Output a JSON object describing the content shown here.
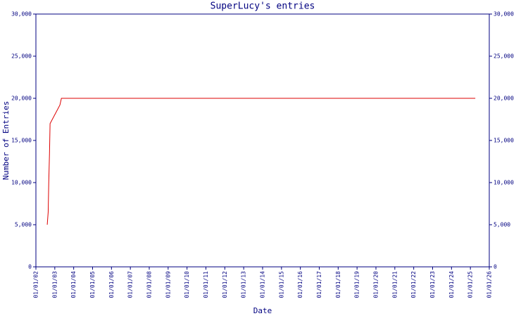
{
  "chart_data": {
    "type": "line",
    "title": "SuperLucy's entries",
    "x_label": "Date",
    "y_label": "Number of Entries",
    "series": [
      {
        "name": "SuperLucy",
        "color": "#dd0000",
        "x": [
          2002.6,
          2002.65,
          2002.68,
          2002.72,
          2002.75,
          2003.27,
          2003.35,
          2025.26
        ],
        "values": [
          5000,
          6500,
          10000,
          13500,
          17000,
          19200,
          20000,
          20000
        ]
      }
    ],
    "xlim": [
      2002,
      2026
    ],
    "xticks": [
      {
        "value": 2002,
        "label": "01/01/02"
      },
      {
        "value": 2003,
        "label": "01/01/03"
      },
      {
        "value": 2004,
        "label": "01/01/04"
      },
      {
        "value": 2005,
        "label": "01/01/05"
      },
      {
        "value": 2006,
        "label": "01/01/06"
      },
      {
        "value": 2007,
        "label": "01/01/07"
      },
      {
        "value": 2008,
        "label": "01/01/08"
      },
      {
        "value": 2009,
        "label": "01/01/09"
      },
      {
        "value": 2010,
        "label": "01/01/10"
      },
      {
        "value": 2011,
        "label": "01/01/11"
      },
      {
        "value": 2012,
        "label": "01/01/12"
      },
      {
        "value": 2013,
        "label": "01/01/13"
      },
      {
        "value": 2014,
        "label": "01/01/14"
      },
      {
        "value": 2015,
        "label": "01/01/15"
      },
      {
        "value": 2016,
        "label": "01/01/16"
      },
      {
        "value": 2017,
        "label": "01/01/17"
      },
      {
        "value": 2018,
        "label": "01/01/18"
      },
      {
        "value": 2019,
        "label": "01/01/19"
      },
      {
        "value": 2020,
        "label": "01/01/20"
      },
      {
        "value": 2021,
        "label": "01/01/21"
      },
      {
        "value": 2022,
        "label": "01/01/22"
      },
      {
        "value": 2023,
        "label": "01/01/23"
      },
      {
        "value": 2024,
        "label": "01/01/24"
      },
      {
        "value": 2025,
        "label": "01/01/25"
      },
      {
        "value": 2026,
        "label": "01/01/26"
      }
    ],
    "ylim": [
      0,
      30000
    ],
    "yticks": [
      0,
      {
        "value": 5000,
        "label": "5,000"
      },
      {
        "value": 10000,
        "label": "10,000"
      },
      {
        "value": 15000,
        "label": "15,000"
      },
      {
        "value": 20000,
        "label": "20,000"
      },
      {
        "value": 25000,
        "label": "25,000"
      },
      {
        "value": 30000,
        "label": "30,000"
      }
    ],
    "grid": false
  }
}
